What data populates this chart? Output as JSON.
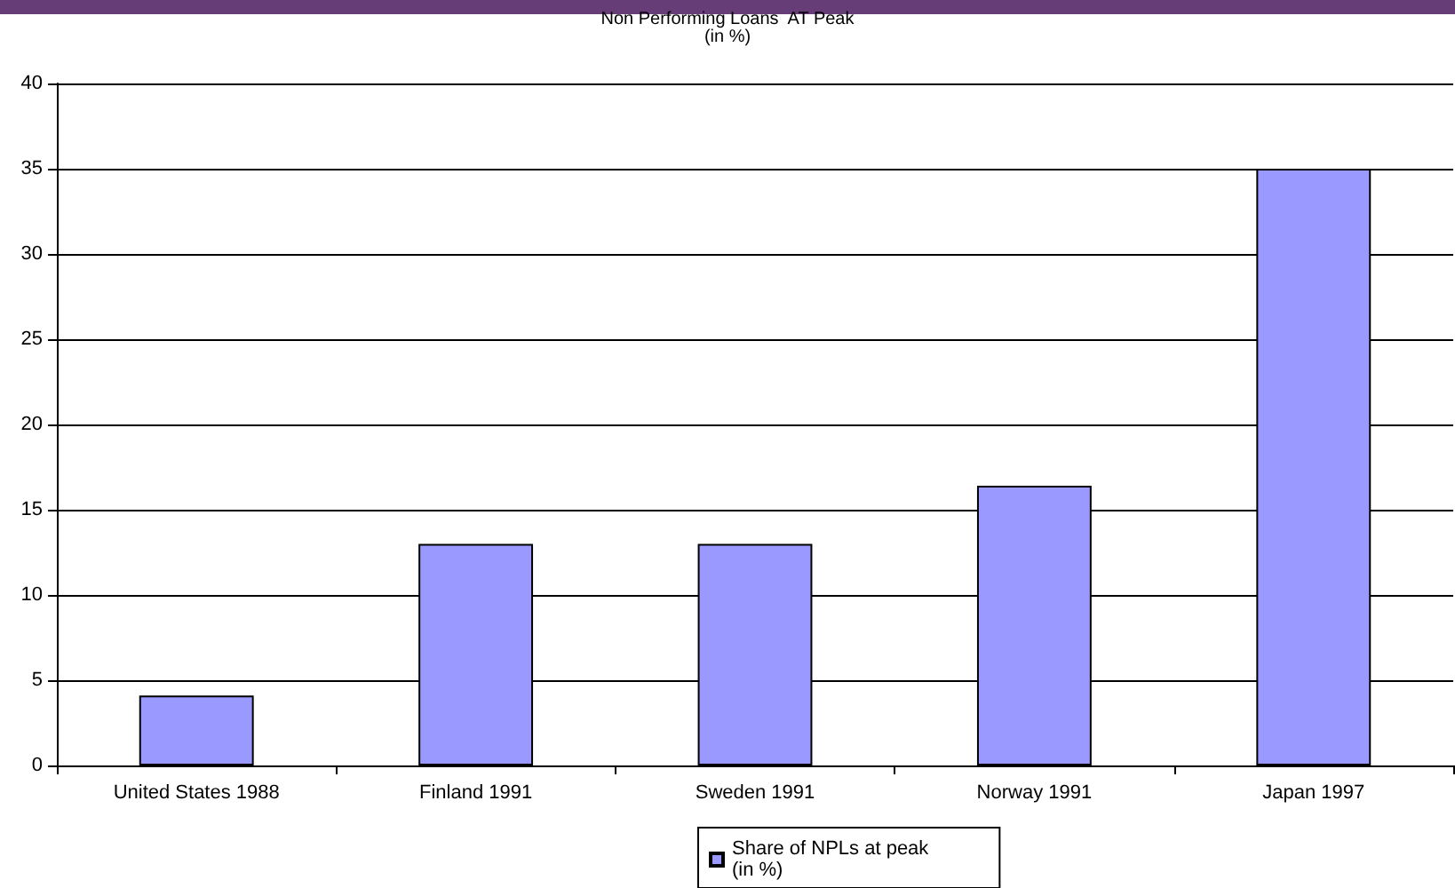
{
  "chart_data": {
    "type": "bar",
    "title": "Non Performing Loans  AT Peak",
    "subtitle": "(in %)",
    "categories": [
      "United States 1988",
      "Finland 1991",
      "Sweden 1991",
      "Norway 1991",
      "Japan 1997"
    ],
    "series": [
      {
        "name": "Share of NPLs at peak\n(in %)",
        "color": "#9999ff",
        "values": [
          4.1,
          13,
          13,
          16.4,
          35
        ]
      }
    ],
    "ylim": [
      0,
      40
    ],
    "yticks": [
      0,
      5,
      10,
      15,
      20,
      25,
      30,
      35,
      40
    ],
    "grid": "y",
    "legend": "bottom"
  }
}
